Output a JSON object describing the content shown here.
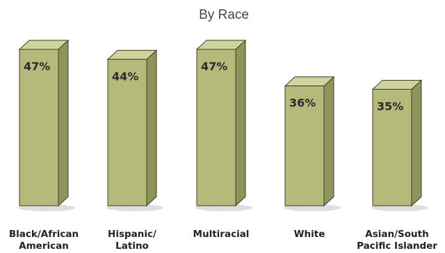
{
  "chart_data": {
    "type": "bar",
    "title": "",
    "subtitle": "By Race",
    "categories": [
      [
        "Black/African",
        "American"
      ],
      [
        "Hispanic/",
        "Latino"
      ],
      [
        "Multiracial"
      ],
      [
        "White"
      ],
      [
        "Asian/South",
        "Pacific Islander"
      ]
    ],
    "values": [
      47,
      44,
      47,
      36,
      35
    ],
    "value_labels": [
      "47%",
      "44%",
      "47%",
      "36%",
      "35%"
    ],
    "ylim": [
      0,
      50
    ],
    "grid": false,
    "legend": "none",
    "colors": {
      "bar_front": "#b5b97a",
      "bar_side": "#8f945a",
      "bar_top": "#cfd39c",
      "outline": "#3d3d2a",
      "shadow": "#d6d6d6"
    }
  }
}
